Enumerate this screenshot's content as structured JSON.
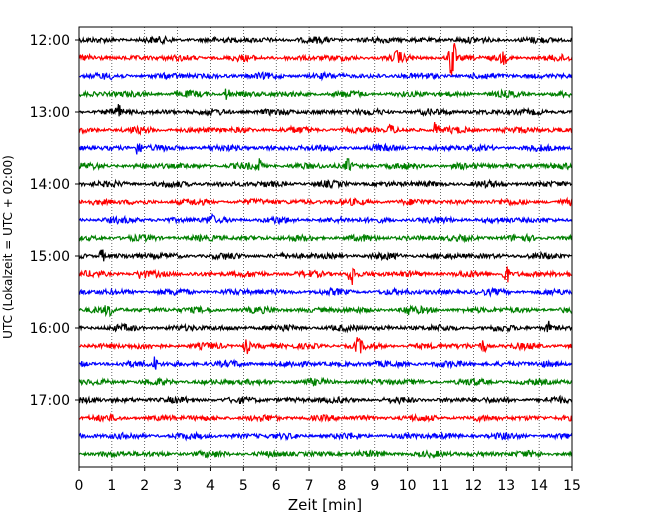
{
  "chart_data": {
    "type": "line",
    "title": "",
    "xlabel": "Zeit  [min]",
    "ylabel": "UTC (Lokalzeit = UTC + 02:00)",
    "xlim": [
      0,
      15
    ],
    "x_ticks": [
      "0",
      "1",
      "2",
      "3",
      "4",
      "5",
      "6",
      "7",
      "8",
      "9",
      "10",
      "11",
      "12",
      "13",
      "14",
      "15"
    ],
    "y_ticks": [
      "12:00",
      "13:00",
      "14:00",
      "15:00",
      "16:00",
      "17:00"
    ],
    "grid": "vertical dotted",
    "trace_interval_minutes": 15,
    "colors": [
      "#000000",
      "#ff0000",
      "#0000ff",
      "#008000"
    ],
    "series": [
      {
        "start": "12:00",
        "color": "#000000"
      },
      {
        "start": "12:15",
        "color": "#ff0000",
        "events": [
          {
            "x": 11.35,
            "amp": 1.0
          },
          {
            "x": 9.7,
            "amp": 0.25
          },
          {
            "x": 12.9,
            "amp": 0.2
          }
        ]
      },
      {
        "start": "12:30",
        "color": "#0000ff"
      },
      {
        "start": "12:45",
        "color": "#008000",
        "events": [
          {
            "x": 4.5,
            "amp": 0.25
          }
        ]
      },
      {
        "start": "13:00",
        "color": "#000000",
        "events": [
          {
            "x": 1.2,
            "amp": 0.25
          }
        ]
      },
      {
        "start": "13:15",
        "color": "#ff0000",
        "events": [
          {
            "x": 10.85,
            "amp": 0.3
          },
          {
            "x": 9.5,
            "amp": 0.2
          }
        ]
      },
      {
        "start": "13:30",
        "color": "#0000ff",
        "events": [
          {
            "x": 1.8,
            "amp": 0.3
          }
        ]
      },
      {
        "start": "13:45",
        "color": "#008000",
        "events": [
          {
            "x": 5.5,
            "amp": 0.25
          },
          {
            "x": 8.2,
            "amp": 0.25
          }
        ]
      },
      {
        "start": "14:00",
        "color": "#000000"
      },
      {
        "start": "14:15",
        "color": "#ff0000"
      },
      {
        "start": "14:30",
        "color": "#0000ff",
        "events": [
          {
            "x": 4.0,
            "amp": 0.2
          }
        ]
      },
      {
        "start": "14:45",
        "color": "#008000"
      },
      {
        "start": "15:00",
        "color": "#000000",
        "events": [
          {
            "x": 0.7,
            "amp": 0.25
          }
        ]
      },
      {
        "start": "15:15",
        "color": "#ff0000",
        "events": [
          {
            "x": 8.3,
            "amp": 0.5
          },
          {
            "x": 13.0,
            "amp": 0.4
          },
          {
            "x": 1.9,
            "amp": 0.2
          }
        ]
      },
      {
        "start": "15:30",
        "color": "#0000ff"
      },
      {
        "start": "15:45",
        "color": "#008000",
        "events": [
          {
            "x": 0.9,
            "amp": 0.2
          },
          {
            "x": 10.0,
            "amp": 0.2
          }
        ]
      },
      {
        "start": "16:00",
        "color": "#000000",
        "events": [
          {
            "x": 14.3,
            "amp": 0.2
          }
        ]
      },
      {
        "start": "16:15",
        "color": "#ff0000",
        "events": [
          {
            "x": 5.1,
            "amp": 0.3
          },
          {
            "x": 8.5,
            "amp": 0.3
          },
          {
            "x": 12.3,
            "amp": 0.25
          }
        ]
      },
      {
        "start": "16:30",
        "color": "#0000ff",
        "events": [
          {
            "x": 2.3,
            "amp": 0.25
          }
        ]
      },
      {
        "start": "16:45",
        "color": "#008000"
      },
      {
        "start": "17:00",
        "color": "#000000"
      },
      {
        "start": "17:15",
        "color": "#ff0000"
      },
      {
        "start": "17:30",
        "color": "#0000ff"
      },
      {
        "start": "17:45",
        "color": "#008000"
      }
    ]
  }
}
